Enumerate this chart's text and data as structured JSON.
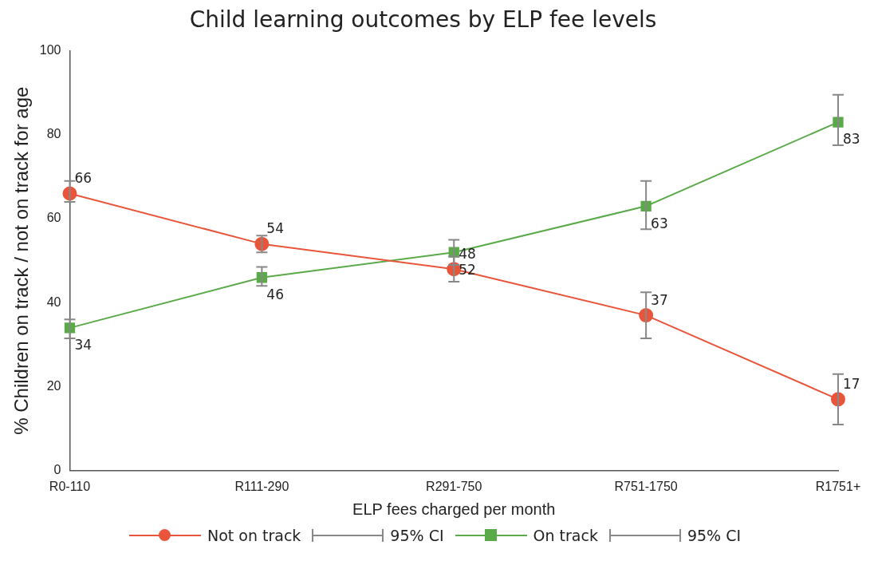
{
  "chart_data": {
    "type": "line",
    "title": "Child learning outcomes by ELP fee levels",
    "xlabel": "ELP fees charged per month",
    "ylabel": "% Children on track / not on track for age",
    "categories": [
      "R0-110",
      "R111-290",
      "R291-750",
      "R751-1750",
      "R1751+"
    ],
    "series": [
      {
        "name": "Not on track",
        "color": "#e8553a",
        "marker": "circle",
        "values": [
          66,
          54,
          48,
          37,
          17
        ],
        "errors": [
          [
            64,
            69
          ],
          [
            52,
            56
          ],
          [
            45,
            51
          ],
          [
            31.5,
            42.5
          ],
          [
            11,
            23
          ]
        ]
      },
      {
        "name": "On track",
        "color": "#5aaa4a",
        "marker": "square",
        "values": [
          34,
          46,
          52,
          63,
          83
        ],
        "errors": [
          [
            31.5,
            36
          ],
          [
            44,
            48.5
          ],
          [
            49,
            55
          ],
          [
            57.5,
            69
          ],
          [
            77.5,
            89.5
          ]
        ]
      }
    ],
    "annotations": [
      "95% CI",
      "95% CI"
    ],
    "ylim": [
      0,
      100
    ],
    "yticks": [
      0,
      20,
      40,
      60,
      80,
      100
    ],
    "grid": false,
    "legend": "bottom",
    "data_labels": true
  }
}
